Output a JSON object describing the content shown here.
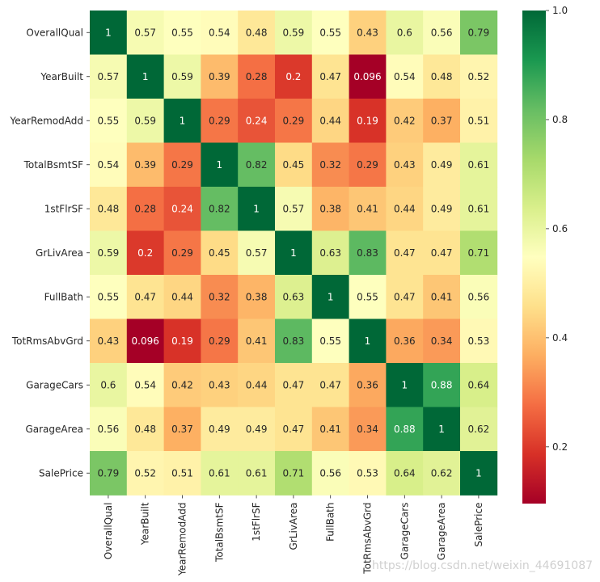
{
  "chart_data": {
    "type": "heatmap",
    "title": "",
    "labels": [
      "OverallQual",
      "YearBuilt",
      "YearRemodAdd",
      "TotalBsmtSF",
      "1stFlrSF",
      "GrLivArea",
      "FullBath",
      "TotRmsAbvGrd",
      "GarageCars",
      "GarageArea",
      "SalePrice"
    ],
    "values": [
      [
        "1",
        "0.57",
        "0.55",
        "0.54",
        "0.48",
        "0.59",
        "0.55",
        "0.43",
        "0.6",
        "0.56",
        "0.79"
      ],
      [
        "0.57",
        "1",
        "0.59",
        "0.39",
        "0.28",
        "0.2",
        "0.47",
        "0.096",
        "0.54",
        "0.48",
        "0.52"
      ],
      [
        "0.55",
        "0.59",
        "1",
        "0.29",
        "0.24",
        "0.29",
        "0.44",
        "0.19",
        "0.42",
        "0.37",
        "0.51"
      ],
      [
        "0.54",
        "0.39",
        "0.29",
        "1",
        "0.82",
        "0.45",
        "0.32",
        "0.29",
        "0.43",
        "0.49",
        "0.61"
      ],
      [
        "0.48",
        "0.28",
        "0.24",
        "0.82",
        "1",
        "0.57",
        "0.38",
        "0.41",
        "0.44",
        "0.49",
        "0.61"
      ],
      [
        "0.59",
        "0.2",
        "0.29",
        "0.45",
        "0.57",
        "1",
        "0.63",
        "0.83",
        "0.47",
        "0.47",
        "0.71"
      ],
      [
        "0.55",
        "0.47",
        "0.44",
        "0.32",
        "0.38",
        "0.63",
        "1",
        "0.55",
        "0.47",
        "0.41",
        "0.56"
      ],
      [
        "0.43",
        "0.096",
        "0.19",
        "0.29",
        "0.41",
        "0.83",
        "0.55",
        "1",
        "0.36",
        "0.34",
        "0.53"
      ],
      [
        "0.6",
        "0.54",
        "0.42",
        "0.43",
        "0.44",
        "0.47",
        "0.47",
        "0.36",
        "1",
        "0.88",
        "0.64"
      ],
      [
        "0.56",
        "0.48",
        "0.37",
        "0.49",
        "0.49",
        "0.47",
        "0.41",
        "0.34",
        "0.88",
        "1",
        "0.62"
      ],
      [
        "0.79",
        "0.52",
        "0.51",
        "0.61",
        "0.61",
        "0.71",
        "0.56",
        "0.53",
        "0.64",
        "0.62",
        "1"
      ]
    ],
    "colormap": "RdYlGn",
    "colorbar": {
      "min": 0.096,
      "max": 1.0,
      "ticks": [
        "0.2",
        "0.4",
        "0.6",
        "0.8",
        "1.0"
      ]
    },
    "annotations": true
  },
  "watermark": "https://blog.csdn.net/weixin_44691087"
}
